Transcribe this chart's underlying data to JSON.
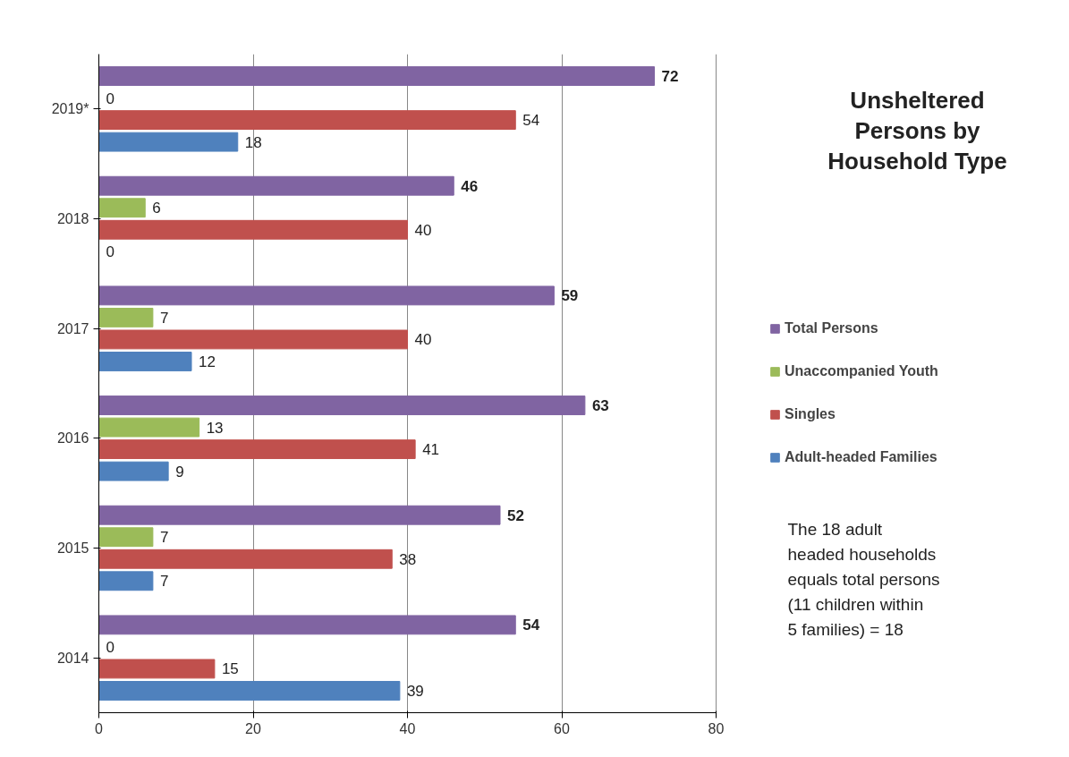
{
  "chart_data": {
    "type": "bar",
    "orientation": "horizontal",
    "title": "Unsheltered\nPersons by\nHousehold Type",
    "categories": [
      "2019*",
      "2018",
      "2017",
      "2016",
      "2015",
      "2014"
    ],
    "series": [
      {
        "name": "Total Persons",
        "color": "#8064a2",
        "values": [
          72,
          46,
          59,
          63,
          52,
          54
        ]
      },
      {
        "name": "Unaccompanied Youth",
        "color": "#9bbb59",
        "values": [
          0,
          6,
          7,
          13,
          7,
          0
        ]
      },
      {
        "name": "Singles",
        "color": "#c0504d",
        "values": [
          54,
          40,
          40,
          41,
          38,
          15
        ]
      },
      {
        "name": "Adult-headed Families",
        "color": "#4f81bd",
        "values": [
          18,
          0,
          12,
          9,
          7,
          39
        ]
      }
    ],
    "xlim": [
      0,
      80
    ],
    "xticks": [
      0,
      20,
      40,
      60,
      80
    ],
    "grid": "x",
    "legend": "right",
    "data_labels": true,
    "annotations": [
      "The 18 adult\nheaded households\nequals total persons\n(11 children within\n5 families) = 18"
    ]
  }
}
